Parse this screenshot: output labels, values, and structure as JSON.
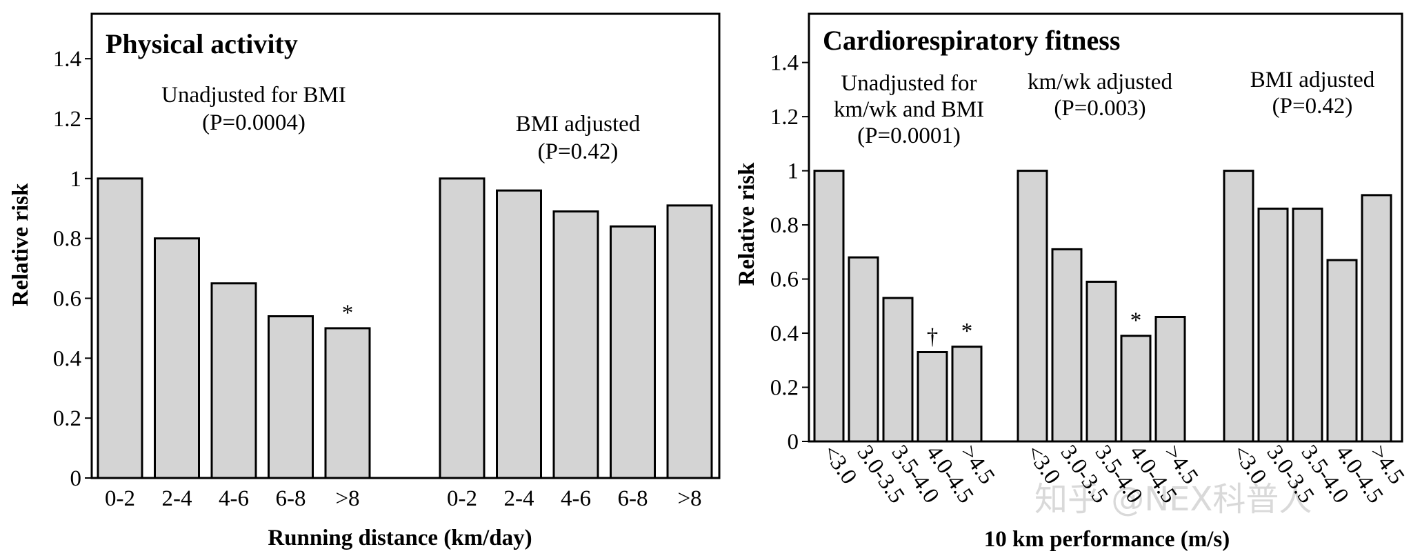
{
  "colors": {
    "bar_fill": "#d4d4d4",
    "bar_stroke": "#000000",
    "axis": "#000000",
    "watermark": "#d0d0d0"
  },
  "watermark": "知乎 @NEX科普人",
  "chart_data": [
    {
      "type": "bar",
      "title": "Physical activity",
      "ylabel": "Relative risk",
      "xlabel": "Running distance (km/day)",
      "ylim": [
        0,
        1.55
      ],
      "yticks": [
        0,
        0.2,
        0.4,
        0.6,
        0.8,
        1,
        1.2,
        1.4
      ],
      "ytick_labels": [
        "0",
        "0.2",
        "0.4",
        "0.6",
        "0.8",
        "1",
        "1.2",
        "1.4"
      ],
      "grid": false,
      "groups": [
        {
          "label_lines": [
            "Unadjusted for BMI",
            "(P=0.0004)"
          ],
          "categories": [
            "0-2",
            "2-4",
            "4-6",
            "6-8",
            ">8"
          ],
          "values": [
            1.0,
            0.8,
            0.65,
            0.54,
            0.5
          ],
          "markers": [
            "",
            "",
            "",
            "",
            "*"
          ]
        },
        {
          "label_lines": [
            "BMI adjusted",
            "(P=0.42)"
          ],
          "categories": [
            "0-2",
            "2-4",
            "4-6",
            "6-8",
            ">8"
          ],
          "values": [
            1.0,
            0.96,
            0.89,
            0.84,
            0.91
          ],
          "markers": [
            "",
            "",
            "",
            "",
            ""
          ]
        }
      ]
    },
    {
      "type": "bar",
      "title": "Cardiorespiratory fitness",
      "ylabel": "Relative risk",
      "xlabel": "10 km performance (m/s)",
      "ylim": [
        0,
        1.58
      ],
      "yticks": [
        0,
        0.2,
        0.4,
        0.6,
        0.8,
        1,
        1.2,
        1.4
      ],
      "ytick_labels": [
        "0",
        "0.2",
        "0.4",
        "0.6",
        "0.8",
        "1",
        "1.2",
        "1.4"
      ],
      "grid": false,
      "groups": [
        {
          "label_lines": [
            "Unadjusted for",
            "km/wk and BMI",
            "(P=0.0001)"
          ],
          "categories": [
            "<3.0",
            "3.0-3.5",
            "3.5-4.0",
            "4.0-4.5",
            ">4.5"
          ],
          "values": [
            1.0,
            0.68,
            0.53,
            0.33,
            0.35
          ],
          "markers": [
            "",
            "",
            "",
            "†",
            "*"
          ]
        },
        {
          "label_lines": [
            "km/wk adjusted",
            "(P=0.003)"
          ],
          "categories": [
            "<3.0",
            "3.0-3.5",
            "3.5-4.0",
            "4.0-4.5",
            ">4.5"
          ],
          "values": [
            1.0,
            0.71,
            0.59,
            0.39,
            0.46
          ],
          "markers": [
            "",
            "",
            "",
            "*",
            ""
          ]
        },
        {
          "label_lines": [
            "BMI adjusted",
            "(P=0.42)"
          ],
          "categories": [
            "<3.0",
            "3.0-3.5",
            "3.5-4.0",
            "4.0-4.5",
            ">4.5"
          ],
          "values": [
            1.0,
            0.86,
            0.86,
            0.67,
            0.91
          ],
          "markers": [
            "",
            "",
            "",
            "",
            ""
          ]
        }
      ]
    }
  ]
}
